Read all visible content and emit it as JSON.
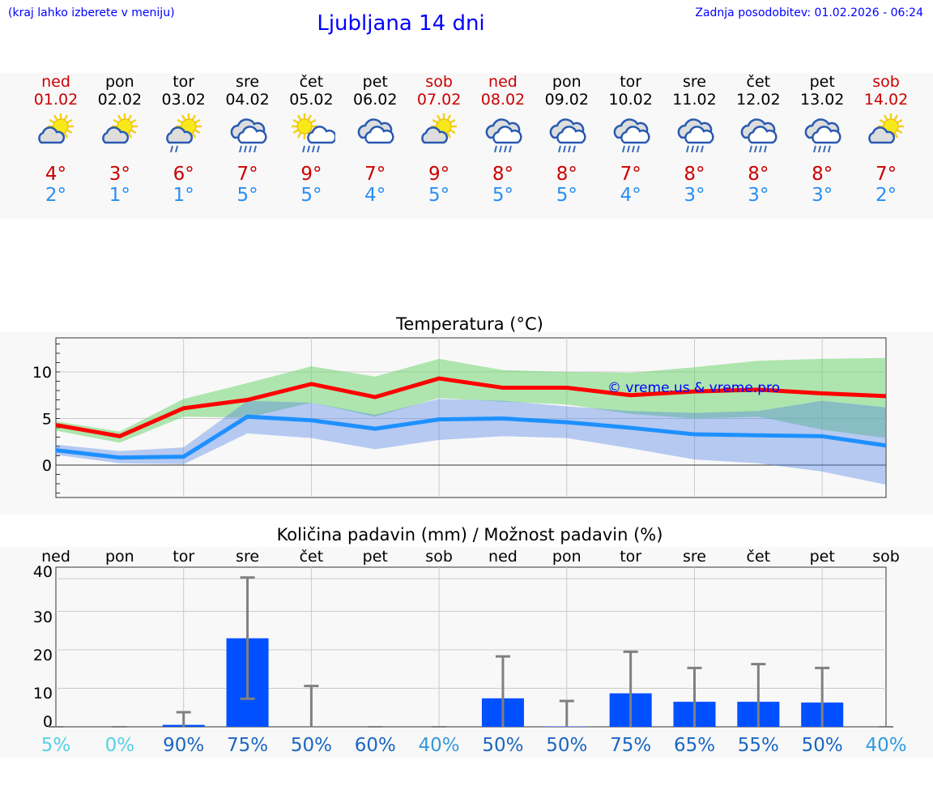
{
  "header": {
    "hint": "(kraj lahko izberete v meniju)",
    "title": "Ljubljana 14 dni",
    "updated": "Zadnja posodobitev: 01.02.2026 - 06:24"
  },
  "days": [
    {
      "name": "ned",
      "date": "01.02",
      "max": "4°",
      "min": "2°",
      "icon": "partly-sunny",
      "weekend": true
    },
    {
      "name": "pon",
      "date": "02.02",
      "max": "3°",
      "min": "1°",
      "icon": "partly-sunny",
      "weekend": false
    },
    {
      "name": "tor",
      "date": "03.02",
      "max": "6°",
      "min": "1°",
      "icon": "partly-sunny-rain",
      "weekend": false
    },
    {
      "name": "sre",
      "date": "04.02",
      "max": "7°",
      "min": "5°",
      "icon": "cloud-rain",
      "weekend": false
    },
    {
      "name": "čet",
      "date": "05.02",
      "max": "9°",
      "min": "5°",
      "icon": "sun-cloud-rain",
      "weekend": false
    },
    {
      "name": "pet",
      "date": "06.02",
      "max": "7°",
      "min": "4°",
      "icon": "cloudy",
      "weekend": false
    },
    {
      "name": "sob",
      "date": "07.02",
      "max": "9°",
      "min": "5°",
      "icon": "partly-sunny",
      "weekend": true
    },
    {
      "name": "ned",
      "date": "08.02",
      "max": "8°",
      "min": "5°",
      "icon": "cloud-rain",
      "weekend": true
    },
    {
      "name": "pon",
      "date": "09.02",
      "max": "8°",
      "min": "5°",
      "icon": "cloud-rain",
      "weekend": false
    },
    {
      "name": "tor",
      "date": "10.02",
      "max": "7°",
      "min": "4°",
      "icon": "cloud-rain",
      "weekend": false
    },
    {
      "name": "sre",
      "date": "11.02",
      "max": "8°",
      "min": "3°",
      "icon": "cloud-rain",
      "weekend": false
    },
    {
      "name": "čet",
      "date": "12.02",
      "max": "8°",
      "min": "3°",
      "icon": "cloud-rain",
      "weekend": false
    },
    {
      "name": "pet",
      "date": "13.02",
      "max": "8°",
      "min": "3°",
      "icon": "cloud-rain",
      "weekend": false
    },
    {
      "name": "sob",
      "date": "14.02",
      "max": "7°",
      "min": "2°",
      "icon": "partly-sunny",
      "weekend": true
    }
  ],
  "chart_data": [
    {
      "type": "line",
      "title": "Temperatura (°C)",
      "watermark": "© vreme.us & vreme.pro",
      "ylim": [
        -3.5,
        13.5
      ],
      "yticks": [
        "0",
        "5",
        "10"
      ],
      "series": [
        {
          "name": "max",
          "color": "#ff0000",
          "values": [
            4.3,
            3.1,
            6.1,
            7.0,
            8.7,
            7.3,
            9.3,
            8.3,
            8.3,
            7.5,
            7.9,
            8.1,
            7.7,
            7.4
          ],
          "band_low": [
            3.7,
            2.4,
            5.2,
            5.1,
            6.7,
            5.2,
            7.2,
            6.8,
            6.5,
            5.5,
            5.0,
            5.2,
            3.8,
            2.9
          ],
          "band_high": [
            4.7,
            3.6,
            7.1,
            8.8,
            10.6,
            9.5,
            11.4,
            10.2,
            10.0,
            9.9,
            10.5,
            11.2,
            11.4,
            11.5
          ]
        },
        {
          "name": "min",
          "color": "#1e90ff",
          "values": [
            1.6,
            0.8,
            0.9,
            5.2,
            4.8,
            3.9,
            4.9,
            5.0,
            4.6,
            4.0,
            3.3,
            3.2,
            3.1,
            2.1
          ],
          "band_low": [
            1.1,
            0.2,
            0.1,
            3.4,
            2.9,
            1.7,
            2.7,
            3.1,
            2.9,
            1.8,
            0.6,
            0.2,
            -0.7,
            -2.1
          ],
          "band_high": [
            2.2,
            1.5,
            1.9,
            6.9,
            6.7,
            5.4,
            7.1,
            6.9,
            6.3,
            5.8,
            5.6,
            5.8,
            6.9,
            6.2
          ]
        }
      ]
    },
    {
      "type": "bar",
      "title": "Količina padavin (mm) / Možnost padavin (%)",
      "categories": [
        "ned",
        "pon",
        "tor",
        "sre",
        "čet",
        "pet",
        "sob",
        "ned",
        "pon",
        "tor",
        "sre",
        "čet",
        "pet",
        "sob"
      ],
      "ylim": [
        0,
        40
      ],
      "yticks": [
        "0",
        "10",
        "20",
        "30",
        "40"
      ],
      "values": [
        0,
        0,
        0.5,
        23,
        0,
        0,
        0,
        7.4,
        0.1,
        8.7,
        6.5,
        6.5,
        6.3,
        0
      ],
      "err_low": [
        0,
        0,
        0,
        7.3,
        0,
        0,
        0,
        0,
        0,
        0,
        0,
        0,
        0,
        0
      ],
      "err_high": [
        0,
        0,
        3.8,
        38.8,
        10.6,
        0,
        0,
        18.3,
        6.7,
        19.5,
        15.3,
        16.3,
        15.3,
        0
      ],
      "probability": [
        "5%",
        "0%",
        "90%",
        "75%",
        "50%",
        "60%",
        "40%",
        "50%",
        "50%",
        "75%",
        "65%",
        "55%",
        "50%",
        "40%"
      ],
      "prob_colors": [
        "#55d0e8",
        "#55d0e8",
        "#1a66c0",
        "#1a66c0",
        "#1a66c0",
        "#1a66c0",
        "#3399dd",
        "#1a66c0",
        "#1a66c0",
        "#1a66c0",
        "#1a66c0",
        "#1a66c0",
        "#1a66c0",
        "#3399dd"
      ]
    }
  ]
}
